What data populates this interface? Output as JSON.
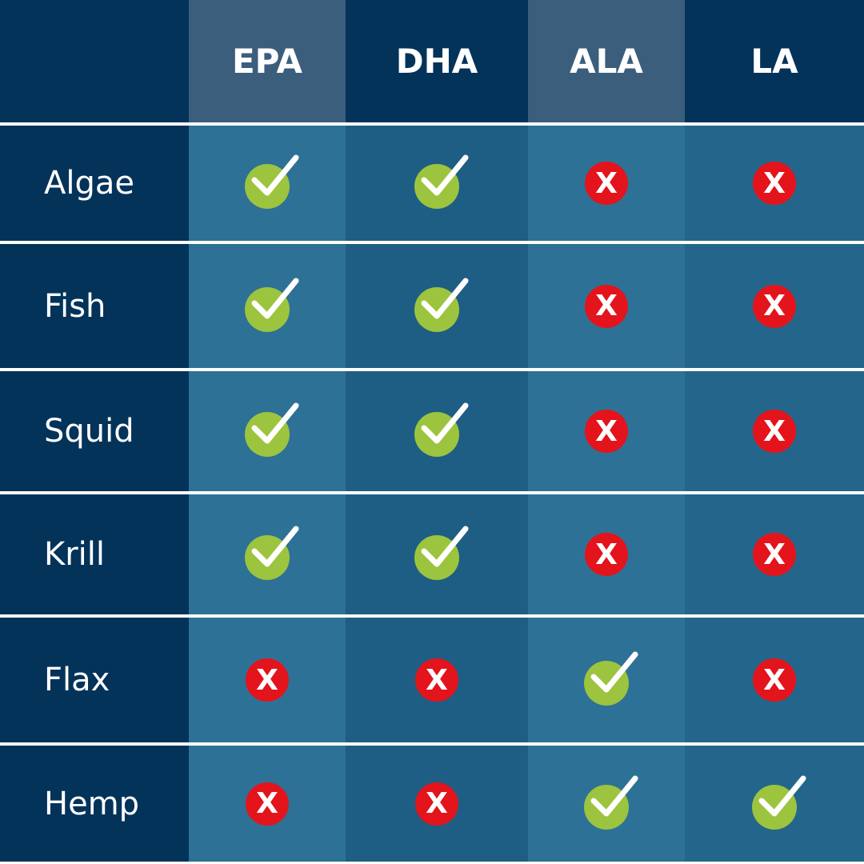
{
  "columns": [
    "",
    "EPA",
    "DHA",
    "ALA",
    "LA"
  ],
  "rows": [
    {
      "label": "Algae",
      "values": [
        true,
        true,
        false,
        false
      ]
    },
    {
      "label": "Fish",
      "values": [
        true,
        true,
        false,
        false
      ]
    },
    {
      "label": "Squid",
      "values": [
        true,
        true,
        false,
        false
      ]
    },
    {
      "label": "Krill",
      "values": [
        true,
        true,
        false,
        false
      ]
    },
    {
      "label": "Flax",
      "values": [
        false,
        false,
        true,
        false
      ]
    },
    {
      "label": "Hemp",
      "values": [
        false,
        false,
        true,
        true
      ]
    }
  ],
  "icons": {
    "yes": "check-circle-icon",
    "no": "x-circle-icon",
    "no_glyph": "X"
  },
  "colors": {
    "check": "#9cc43e",
    "cross": "#e3141c",
    "navy": "#04335a"
  }
}
